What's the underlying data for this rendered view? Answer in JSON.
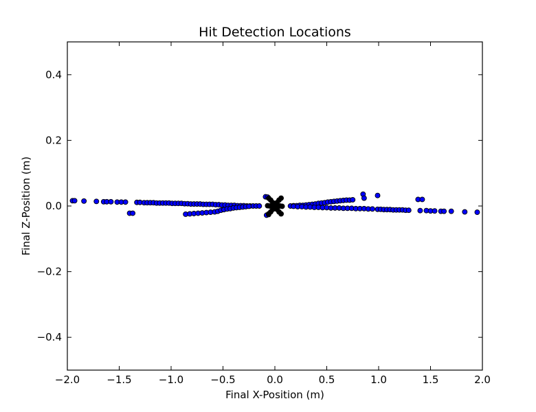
{
  "chart_data": {
    "type": "scatter",
    "title": "Hit Detection Locations",
    "xlabel": "Final X-Position (m)",
    "ylabel": "Final Z-Position (m)",
    "xlim": [
      -2.0,
      2.0
    ],
    "ylim": [
      -0.5,
      0.5
    ],
    "xticks": [
      -2.0,
      -1.5,
      -1.0,
      -0.5,
      0.0,
      0.5,
      1.0,
      1.5,
      2.0
    ],
    "xtick_labels": [
      "−2.0",
      "−1.5",
      "−1.0",
      "−0.5",
      "0.0",
      "0.5",
      "1.0",
      "1.5",
      "2.0"
    ],
    "yticks": [
      -0.4,
      -0.2,
      0.0,
      0.2,
      0.4
    ],
    "ytick_labels": [
      "−0.4",
      "−0.2",
      "0.0",
      "0.2",
      "0.4"
    ],
    "grid": false,
    "legend": "none",
    "marker_color": "#0000ff",
    "marker_edge": "#000000",
    "series": [
      {
        "points": [
          [
            -1.95,
            0.016
          ],
          [
            -1.93,
            0.016
          ],
          [
            -1.84,
            0.015
          ],
          [
            -1.72,
            0.014
          ],
          [
            -1.65,
            0.013
          ],
          [
            -1.62,
            0.013
          ],
          [
            -1.58,
            0.013
          ],
          [
            -1.52,
            0.012
          ],
          [
            -1.48,
            0.012
          ],
          [
            -1.44,
            0.012
          ],
          [
            -1.33,
            0.011
          ],
          [
            -1.3,
            0.011
          ],
          [
            -1.26,
            0.01
          ],
          [
            -1.23,
            0.01
          ],
          [
            -1.2,
            0.01
          ],
          [
            -1.17,
            0.01
          ],
          [
            -1.14,
            0.009
          ],
          [
            -1.11,
            0.009
          ],
          [
            -1.08,
            0.009
          ],
          [
            -1.05,
            0.009
          ],
          [
            -1.02,
            0.009
          ],
          [
            -0.99,
            0.008
          ],
          [
            -0.96,
            0.008
          ],
          [
            -0.93,
            0.008
          ],
          [
            -0.9,
            0.008
          ],
          [
            -0.87,
            0.007
          ],
          [
            -0.84,
            0.007
          ],
          [
            -0.81,
            0.006
          ],
          [
            -0.78,
            0.006
          ],
          [
            -0.75,
            0.006
          ],
          [
            -0.72,
            0.006
          ],
          [
            -0.69,
            0.005
          ],
          [
            -0.66,
            0.005
          ],
          [
            -0.63,
            0.005
          ],
          [
            -0.6,
            0.005
          ],
          [
            -0.57,
            0.004
          ],
          [
            -0.54,
            0.004
          ],
          [
            -0.51,
            0.003
          ],
          [
            -0.48,
            0.003
          ],
          [
            -0.45,
            0.002
          ],
          [
            -0.42,
            0.002
          ],
          [
            -0.39,
            0.002
          ],
          [
            -0.36,
            0.001
          ],
          [
            -0.33,
            0.001
          ],
          [
            -0.3,
            0.001
          ],
          [
            -0.27,
            0.0
          ],
          [
            -0.24,
            0.0
          ],
          [
            -0.21,
            0.0
          ],
          [
            -0.18,
            0.0
          ],
          [
            -0.15,
            0.0
          ],
          [
            -1.4,
            -0.022
          ],
          [
            -1.37,
            -0.022
          ],
          [
            -0.86,
            -0.025
          ],
          [
            -0.82,
            -0.024
          ],
          [
            -0.78,
            -0.023
          ],
          [
            -0.74,
            -0.022
          ],
          [
            -0.7,
            -0.021
          ],
          [
            -0.66,
            -0.02
          ],
          [
            -0.62,
            -0.019
          ],
          [
            -0.58,
            -0.018
          ],
          [
            -0.55,
            -0.016
          ],
          [
            -0.52,
            -0.013
          ],
          [
            -0.49,
            -0.011
          ],
          [
            -0.46,
            -0.009
          ],
          [
            -0.43,
            -0.008
          ],
          [
            -0.4,
            -0.006
          ],
          [
            -0.37,
            -0.005
          ],
          [
            -0.34,
            -0.004
          ],
          [
            -0.31,
            -0.003
          ],
          [
            -0.28,
            -0.002
          ],
          [
            -0.25,
            -0.001
          ],
          [
            -0.09,
            0.028
          ],
          [
            -0.07,
            0.027
          ],
          [
            -0.08,
            -0.028
          ],
          [
            -0.06,
            -0.026
          ],
          [
            0.15,
            0.0
          ],
          [
            0.18,
            0.001
          ],
          [
            0.21,
            0.001
          ],
          [
            0.24,
            0.002
          ],
          [
            0.27,
            0.002
          ],
          [
            0.3,
            0.003
          ],
          [
            0.33,
            0.004
          ],
          [
            0.36,
            0.005
          ],
          [
            0.39,
            0.006
          ],
          [
            0.42,
            0.008
          ],
          [
            0.45,
            0.009
          ],
          [
            0.48,
            0.01
          ],
          [
            0.51,
            0.012
          ],
          [
            0.54,
            0.013
          ],
          [
            0.57,
            0.014
          ],
          [
            0.6,
            0.015
          ],
          [
            0.63,
            0.016
          ],
          [
            0.66,
            0.017
          ],
          [
            0.69,
            0.018
          ],
          [
            0.72,
            0.018
          ],
          [
            0.75,
            0.019
          ],
          [
            0.85,
            0.036
          ],
          [
            0.86,
            0.024
          ],
          [
            0.99,
            0.032
          ],
          [
            1.38,
            0.02
          ],
          [
            1.42,
            0.02
          ],
          [
            0.18,
            -0.001
          ],
          [
            0.22,
            -0.002
          ],
          [
            0.26,
            -0.002
          ],
          [
            0.3,
            -0.003
          ],
          [
            0.34,
            -0.003
          ],
          [
            0.38,
            -0.004
          ],
          [
            0.42,
            -0.004
          ],
          [
            0.46,
            -0.005
          ],
          [
            0.5,
            -0.005
          ],
          [
            0.54,
            -0.006
          ],
          [
            0.58,
            -0.006
          ],
          [
            0.62,
            -0.006
          ],
          [
            0.66,
            -0.007
          ],
          [
            0.7,
            -0.007
          ],
          [
            0.74,
            -0.007
          ],
          [
            0.78,
            -0.008
          ],
          [
            0.82,
            -0.008
          ],
          [
            0.86,
            -0.008
          ],
          [
            0.9,
            -0.009
          ],
          [
            0.94,
            -0.009
          ],
          [
            0.99,
            -0.01
          ],
          [
            1.02,
            -0.01
          ],
          [
            1.05,
            -0.011
          ],
          [
            1.08,
            -0.011
          ],
          [
            1.11,
            -0.011
          ],
          [
            1.14,
            -0.012
          ],
          [
            1.17,
            -0.012
          ],
          [
            1.2,
            -0.012
          ],
          [
            1.23,
            -0.012
          ],
          [
            1.26,
            -0.013
          ],
          [
            1.29,
            -0.013
          ],
          [
            1.4,
            -0.014
          ],
          [
            1.46,
            -0.014
          ],
          [
            1.5,
            -0.015
          ],
          [
            1.54,
            -0.015
          ],
          [
            1.6,
            -0.016
          ],
          [
            1.63,
            -0.016
          ],
          [
            1.7,
            -0.016
          ],
          [
            1.83,
            -0.018
          ],
          [
            1.95,
            -0.019
          ]
        ]
      },
      {
        "cluster": "center",
        "points": [
          [
            -0.06,
            0.024
          ],
          [
            -0.04,
            0.018
          ],
          [
            -0.02,
            0.01
          ],
          [
            0.0,
            0.004
          ],
          [
            0.02,
            0.01
          ],
          [
            0.04,
            0.018
          ],
          [
            0.06,
            0.024
          ],
          [
            -0.06,
            -0.024
          ],
          [
            -0.04,
            -0.018
          ],
          [
            -0.02,
            -0.01
          ],
          [
            0.02,
            -0.01
          ],
          [
            0.04,
            -0.018
          ],
          [
            0.06,
            -0.024
          ],
          [
            -0.05,
            0.0
          ],
          [
            -0.03,
            0.0
          ],
          [
            0.03,
            0.0
          ],
          [
            0.05,
            0.0
          ],
          [
            -0.07,
            0.001
          ],
          [
            0.07,
            -0.001
          ],
          [
            0.0,
            0.0
          ],
          [
            -0.01,
            0.002
          ],
          [
            0.01,
            -0.002
          ]
        ]
      }
    ]
  }
}
